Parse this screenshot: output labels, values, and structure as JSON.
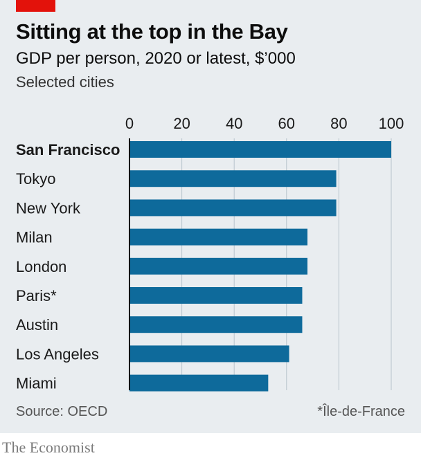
{
  "header": {
    "title": "Sitting at the top in the Bay",
    "subtitle": "GDP per person, 2020 or latest, $’000",
    "subtitle2": "Selected cities"
  },
  "footer": {
    "source": "Source: OECD",
    "footnote": "*Île-de-France",
    "brand": "The Economist"
  },
  "colors": {
    "bar": "#0e6a9b",
    "grid": "#b7c3cc",
    "axis": "#0d0d0d",
    "accent": "#e3120b",
    "panel": "#e9edf0"
  },
  "chart_data": {
    "type": "bar",
    "orientation": "horizontal",
    "title": "Sitting at the top in the Bay",
    "subtitle": "GDP per person, 2020 or latest, $’000",
    "categories": [
      "San Francisco",
      "Tokyo",
      "New York",
      "Milan",
      "London",
      "Paris*",
      "Austin",
      "Los Angeles",
      "Miami"
    ],
    "highlight": "San Francisco",
    "values": [
      100,
      79,
      79,
      68,
      68,
      66,
      66,
      61,
      53
    ],
    "xlim": [
      0,
      100
    ],
    "xticks": [
      0,
      20,
      40,
      60,
      80,
      100
    ],
    "xlabel": "",
    "ylabel": "",
    "grid": true,
    "legend": "none"
  }
}
